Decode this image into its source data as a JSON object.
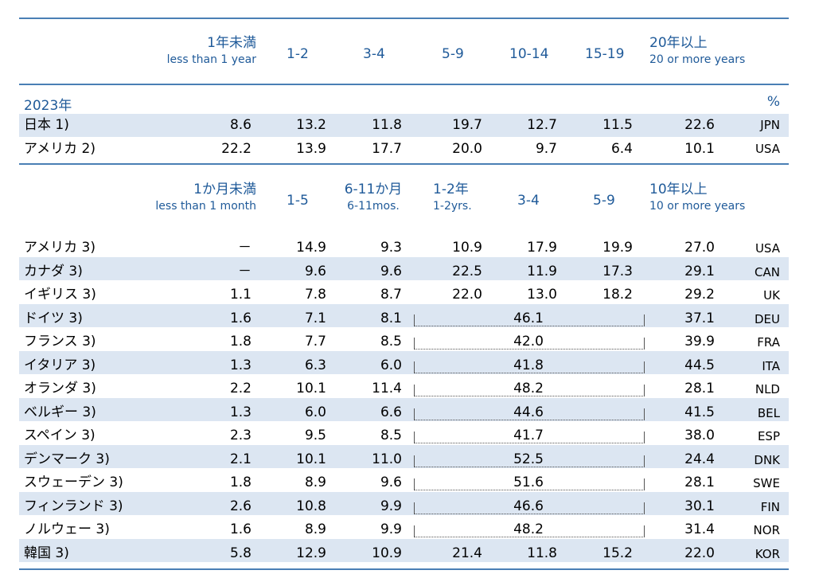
{
  "header1": {
    "c1_jp": "1年未満",
    "c1_en": "less than 1 year",
    "c2": "1-2",
    "c3": "3-4",
    "c4": "5-9",
    "c5": "10-14",
    "c6": "15-19",
    "c7_jp": "20年以上",
    "c7_en": "20 or more years"
  },
  "year_label": "2023年",
  "unit": "%",
  "section1_rows": [
    {
      "label": "日本 1)",
      "values": [
        "8.6",
        "13.2",
        "11.8",
        "19.7",
        "12.7",
        "11.5",
        "22.6"
      ],
      "code": "JPN"
    },
    {
      "label": "アメリカ 2)",
      "values": [
        "22.2",
        "13.9",
        "17.7",
        "20.0",
        "9.7",
        "6.4",
        "10.1"
      ],
      "code": "USA"
    }
  ],
  "header2": {
    "c1_jp": "1か月未満",
    "c1_en": "less than 1 month",
    "c2": "1-5",
    "c3_jp": "6-11か月",
    "c3_en": "6-11mos.",
    "c4_jp": "1-2年",
    "c4_en": "1-2yrs.",
    "c5": "3-4",
    "c6": "5-9",
    "c7_jp": "10年以上",
    "c7_en": "10 or more years"
  },
  "section2_rows": [
    {
      "label": "アメリカ 3)",
      "c1": "－",
      "c2": "14.9",
      "c3": "9.3",
      "c4": "10.9",
      "c5": "17.9",
      "c6": "19.9",
      "c7": "27.0",
      "code": "USA"
    },
    {
      "label": "カナダ 3)",
      "c1": "－",
      "c2": "9.6",
      "c3": "9.6",
      "c4": "22.5",
      "c5": "11.9",
      "c6": "17.3",
      "c7": "29.1",
      "code": "CAN"
    },
    {
      "label": "イギリス 3)",
      "c1": "1.1",
      "c2": "7.8",
      "c3": "8.7",
      "c4": "22.0",
      "c5": "13.0",
      "c6": "18.2",
      "c7": "29.2",
      "code": "UK"
    },
    {
      "label": "ドイツ 3)",
      "c1": "1.6",
      "c2": "7.1",
      "c3": "8.1",
      "merged": "46.1",
      "c7": "37.1",
      "code": "DEU"
    },
    {
      "label": "フランス 3)",
      "c1": "1.8",
      "c2": "7.7",
      "c3": "8.5",
      "merged": "42.0",
      "c7": "39.9",
      "code": "FRA"
    },
    {
      "label": "イタリア 3)",
      "c1": "1.3",
      "c2": "6.3",
      "c3": "6.0",
      "merged": "41.8",
      "c7": "44.5",
      "code": "ITA"
    },
    {
      "label": "オランダ 3)",
      "c1": "2.2",
      "c2": "10.1",
      "c3": "11.4",
      "merged": "48.2",
      "c7": "28.1",
      "code": "NLD"
    },
    {
      "label": "ベルギー 3)",
      "c1": "1.3",
      "c2": "6.0",
      "c3": "6.6",
      "merged": "44.6",
      "c7": "41.5",
      "code": "BEL"
    },
    {
      "label": "スペイン 3)",
      "c1": "2.3",
      "c2": "9.5",
      "c3": "8.5",
      "merged": "41.7",
      "c7": "38.0",
      "code": "ESP"
    },
    {
      "label": "デンマーク 3)",
      "c1": "2.1",
      "c2": "10.1",
      "c3": "11.0",
      "merged": "52.5",
      "c7": "24.4",
      "code": "DNK"
    },
    {
      "label": "スウェーデン 3)",
      "c1": "1.8",
      "c2": "8.9",
      "c3": "9.6",
      "merged": "51.6",
      "c7": "28.1",
      "code": "SWE"
    },
    {
      "label": "フィンランド 3)",
      "c1": "2.6",
      "c2": "10.8",
      "c3": "9.9",
      "merged": "46.6",
      "c7": "30.1",
      "code": "FIN"
    },
    {
      "label": "ノルウェー 3)",
      "c1": "1.6",
      "c2": "8.9",
      "c3": "9.9",
      "merged": "48.2",
      "c7": "31.4",
      "code": "NOR"
    },
    {
      "label": "韓国 3)",
      "c1": "5.8",
      "c2": "12.9",
      "c3": "10.9",
      "c4": "21.4",
      "c5": "11.8",
      "c6": "15.2",
      "c7": "22.0",
      "code": "KOR"
    }
  ]
}
